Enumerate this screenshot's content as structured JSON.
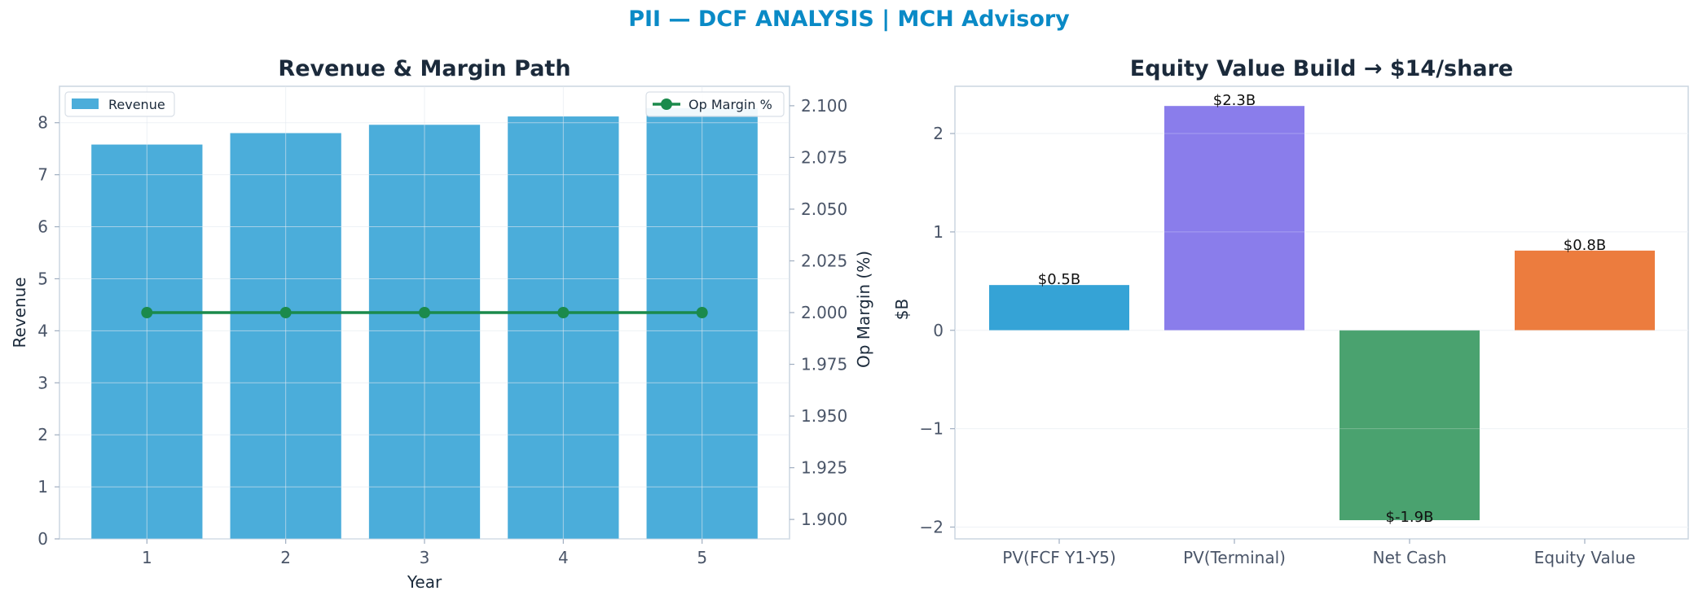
{
  "title": "PII — DCF ANALYSIS | MCH Advisory",
  "colors": {
    "title": "#0a8ac6",
    "revenue_bar": "#4badda",
    "margin_line": "#1b8a4c",
    "equity_bars": [
      "#35a3d6",
      "#8a7deb",
      "#4aa26f",
      "#ec7c3e"
    ]
  },
  "chart_data": [
    {
      "type": "bar",
      "title": "Revenue & Margin Path",
      "xlabel": "Year",
      "ylabel": "Revenue",
      "y2label": "Op Margin (%)",
      "categories": [
        "1",
        "2",
        "3",
        "4",
        "5"
      ],
      "series": [
        {
          "name": "Revenue",
          "type": "bar",
          "axis": "left",
          "values": [
            7.58,
            7.8,
            7.96,
            8.12,
            8.28
          ]
        },
        {
          "name": "Op Margin %",
          "type": "line",
          "axis": "right",
          "values": [
            2.0,
            2.0,
            2.0,
            2.0,
            2.0
          ]
        }
      ],
      "ylim": [
        0,
        8.7
      ],
      "yticks": [
        "0",
        "1",
        "2",
        "3",
        "4",
        "5",
        "6",
        "7",
        "8"
      ],
      "y2lim": [
        1.8906,
        2.1094
      ],
      "y2ticks": [
        "1.900",
        "1.925",
        "1.950",
        "1.975",
        "2.000",
        "2.025",
        "2.050",
        "2.075",
        "2.100"
      ],
      "grid": true,
      "legend": [
        "upper-left",
        "upper-right"
      ]
    },
    {
      "type": "bar",
      "title": "Equity Value Build → $14/share",
      "ylabel": "$B",
      "categories": [
        "PV(FCF Y1-Y5)",
        "PV(Terminal)",
        "Net Cash",
        "Equity Value"
      ],
      "values": [
        0.46,
        2.28,
        -1.93,
        0.81
      ],
      "data_labels": [
        "$0.5B",
        "$2.3B",
        "$-1.9B",
        "$0.8B"
      ],
      "ylim": [
        -2.12,
        2.48
      ],
      "yticks": [
        "−2",
        "−1",
        "0",
        "1",
        "2"
      ],
      "grid": true
    }
  ]
}
